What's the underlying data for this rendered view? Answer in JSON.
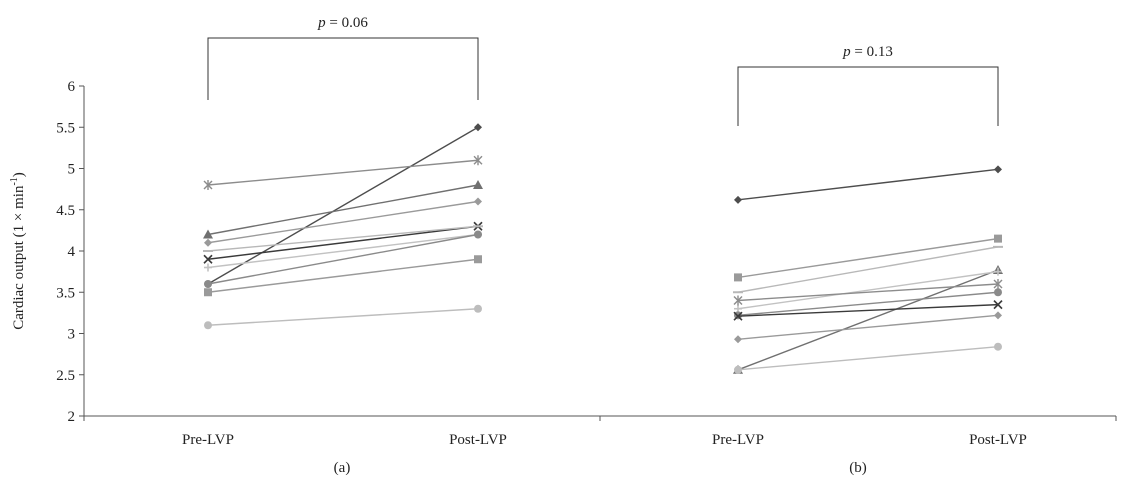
{
  "chart_data": {
    "type": "line",
    "ylabel": "Cardiac output (1 × min",
    "ylabel_sup": "-1",
    "ylabel_close": ")",
    "ylim": [
      2,
      6
    ],
    "yticks": [
      "2",
      "2.5",
      "3",
      "3.5",
      "4",
      "4.5",
      "5",
      "5.5",
      "6"
    ],
    "panels": [
      {
        "label": "(a)",
        "categories": [
          "Pre-LVP",
          "Post-LVP"
        ],
        "p_prefix": "p",
        "p_suffix": " = 0.06",
        "series": [
          {
            "marker": "diamond",
            "color": "#4d4d4d",
            "values": [
              3.6,
              5.5
            ]
          },
          {
            "marker": "star",
            "color": "#8c8c8c",
            "values": [
              4.8,
              5.1
            ]
          },
          {
            "marker": "triangle",
            "color": "#707070",
            "values": [
              4.2,
              4.8
            ]
          },
          {
            "marker": "diamond",
            "color": "#9a9a9a",
            "values": [
              4.1,
              4.6
            ]
          },
          {
            "marker": "x",
            "color": "#3a3a3a",
            "values": [
              3.9,
              4.3
            ]
          },
          {
            "marker": "dash",
            "color": "#b8b8b8",
            "values": [
              4.0,
              4.3
            ]
          },
          {
            "marker": "plus",
            "color": "#c2c2c2",
            "values": [
              3.8,
              4.2
            ]
          },
          {
            "marker": "circle",
            "color": "#8a8a8a",
            "values": [
              3.6,
              4.2
            ]
          },
          {
            "marker": "square",
            "color": "#9a9a9a",
            "values": [
              3.5,
              3.9
            ]
          },
          {
            "marker": "circle",
            "color": "#bdbdbd",
            "values": [
              3.1,
              3.3
            ]
          }
        ]
      },
      {
        "label": "(b)",
        "categories": [
          "Pre-LVP",
          "Post-LVP"
        ],
        "p_prefix": "p",
        "p_suffix": " = 0.13",
        "series": [
          {
            "marker": "diamond",
            "color": "#4d4d4d",
            "values": [
              4.62,
              4.99
            ]
          },
          {
            "marker": "square",
            "color": "#9a9a9a",
            "values": [
              3.68,
              4.15
            ]
          },
          {
            "marker": "dash",
            "color": "#b8b8b8",
            "values": [
              3.5,
              4.05
            ]
          },
          {
            "marker": "triangle",
            "color": "#707070",
            "values": [
              2.56,
              3.77
            ]
          },
          {
            "marker": "plus",
            "color": "#c2c2c2",
            "values": [
              3.3,
              3.75
            ]
          },
          {
            "marker": "star",
            "color": "#8c8c8c",
            "values": [
              3.4,
              3.6
            ]
          },
          {
            "marker": "circle",
            "color": "#8a8a8a",
            "values": [
              3.22,
              3.5
            ]
          },
          {
            "marker": "x",
            "color": "#3a3a3a",
            "values": [
              3.21,
              3.35
            ]
          },
          {
            "marker": "diamond",
            "color": "#9a9a9a",
            "values": [
              2.93,
              3.22
            ]
          },
          {
            "marker": "circle",
            "color": "#bdbdbd",
            "values": [
              2.56,
              2.84
            ]
          }
        ]
      }
    ]
  }
}
